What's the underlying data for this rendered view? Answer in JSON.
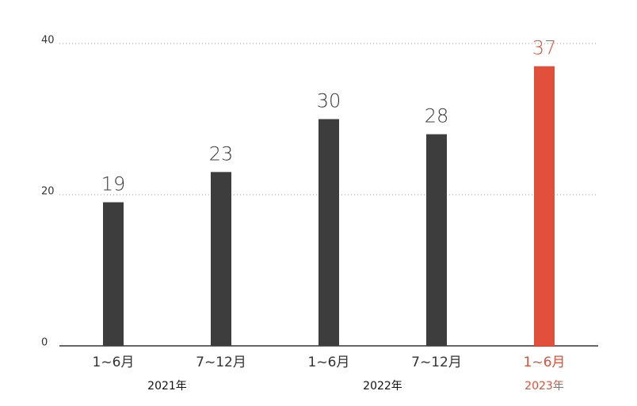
{
  "chart_data": {
    "type": "bar",
    "categories": [
      "1~6月",
      "7~12月",
      "1~6月",
      "7~12月",
      "1~6月"
    ],
    "groups": [
      {
        "label": "2021年",
        "categories": 2
      },
      {
        "label": "2022年",
        "categories": 2
      },
      {
        "label": "2023年",
        "categories": 1
      }
    ],
    "values": [
      19,
      23,
      30,
      28,
      37
    ],
    "colors": [
      "#3d3d3d",
      "#3d3d3d",
      "#3d3d3d",
      "#3d3d3d",
      "#e0503a"
    ],
    "ylim": [
      0,
      40
    ],
    "yticks": [
      0,
      20,
      40
    ],
    "grid": true
  }
}
